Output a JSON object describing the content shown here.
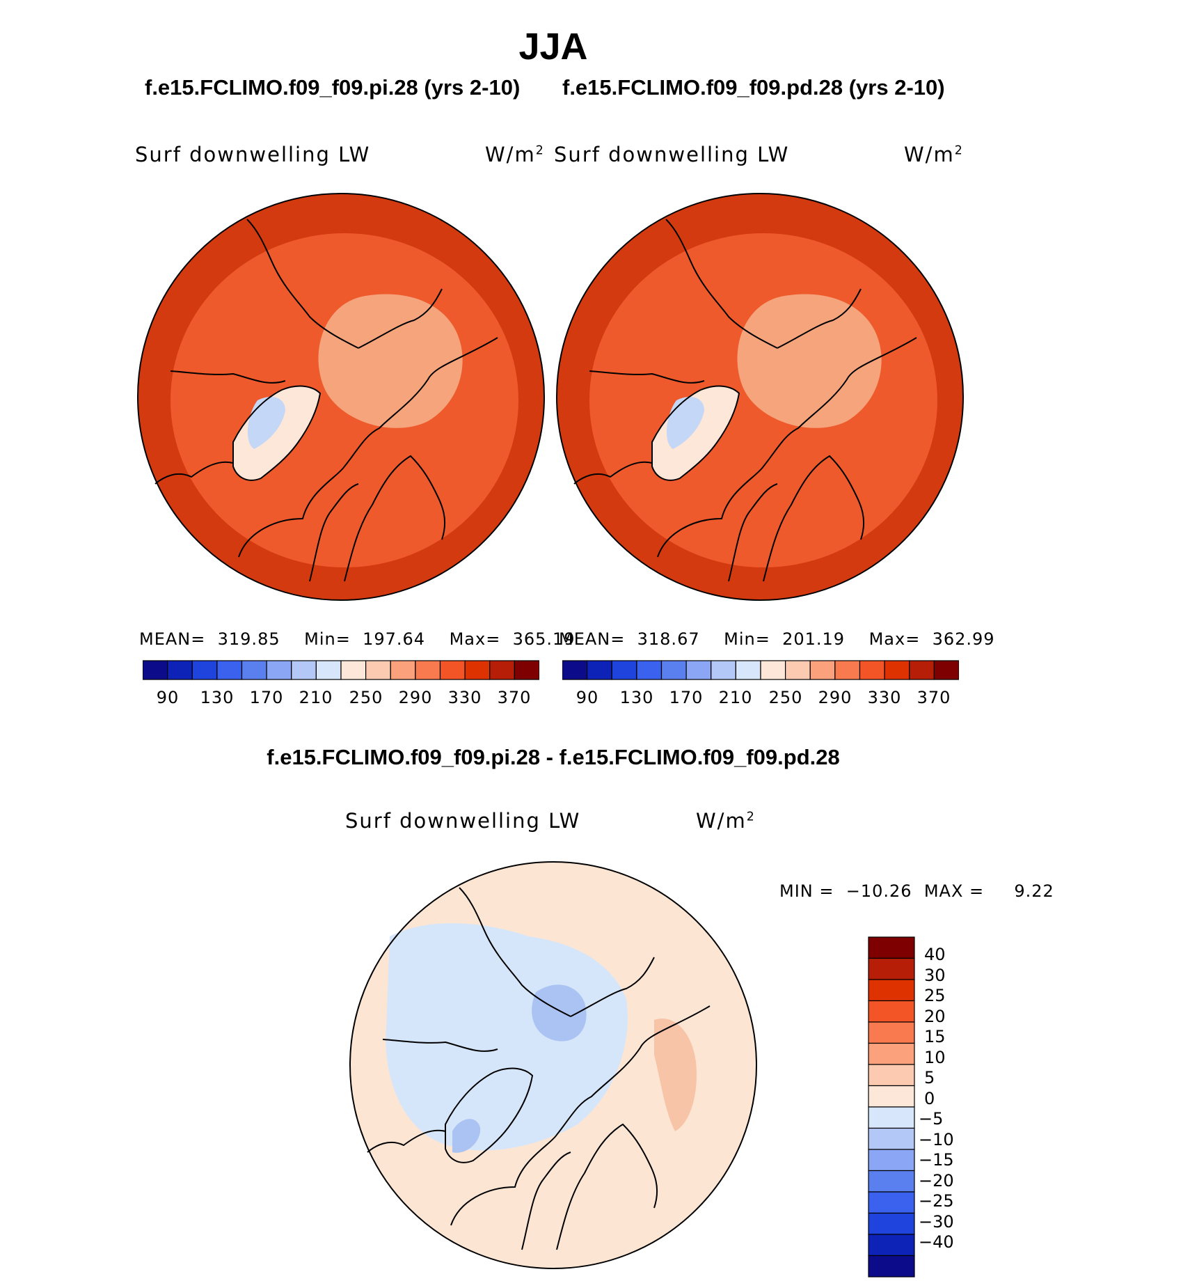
{
  "figure": {
    "title": "JJA",
    "diff_title": "f.e15.FCLIMO.f09_f09.pi.28 - f.e15.FCLIMO.f09_f09.pd.28"
  },
  "chart_data": [
    {
      "type": "heatmap",
      "projection": "north-polar-stereographic",
      "title": "f.e15.FCLIMO.f09_f09.pi.28 (yrs 2-10)",
      "variable": "Surf downwelling LW",
      "units": "W/m",
      "units_sup": "2",
      "mean_label": "MEAN=",
      "mean": "319.85",
      "min_label": "Min=",
      "min": "197.64",
      "max_label": "Max=",
      "max": "365.19",
      "colorbar_ticks": [
        "90",
        "130",
        "170",
        "210",
        "250",
        "290",
        "330",
        "370"
      ],
      "colorbar_levels": [
        90,
        110,
        130,
        150,
        170,
        190,
        210,
        230,
        250,
        270,
        290,
        310,
        330,
        350,
        370
      ]
    },
    {
      "type": "heatmap",
      "projection": "north-polar-stereographic",
      "title": "f.e15.FCLIMO.f09_f09.pd.28 (yrs 2-10)",
      "variable": "Surf downwelling LW",
      "units": "W/m",
      "units_sup": "2",
      "mean_label": "MEAN=",
      "mean": "318.67",
      "min_label": "Min=",
      "min": "201.19",
      "max_label": "Max=",
      "max": "362.99",
      "colorbar_ticks": [
        "90",
        "130",
        "170",
        "210",
        "250",
        "290",
        "330",
        "370"
      ],
      "colorbar_levels": [
        90,
        110,
        130,
        150,
        170,
        190,
        210,
        230,
        250,
        270,
        290,
        310,
        330,
        350,
        370
      ]
    },
    {
      "type": "heatmap",
      "projection": "north-polar-stereographic",
      "title": "f.e15.FCLIMO.f09_f09.pi.28 - f.e15.FCLIMO.f09_f09.pd.28",
      "variable": "Surf downwelling LW",
      "units": "W/m",
      "units_sup": "2",
      "min_label": "MIN =",
      "min": "−10.26",
      "max_label": "MAX =",
      "max": "9.22",
      "colorbar_ticks": [
        "40",
        "30",
        "25",
        "20",
        "15",
        "10",
        "5",
        "0",
        "−5",
        "−10",
        "−15",
        "−20",
        "−25",
        "−30",
        "−40"
      ],
      "colorbar_levels": [
        40,
        30,
        25,
        20,
        15,
        10,
        5,
        0,
        -5,
        -10,
        -15,
        -20,
        -25,
        -30,
        -40
      ]
    }
  ],
  "colors": {
    "seq": [
      "#0c0b8a",
      "#0d23b8",
      "#1f43dd",
      "#3a62ee",
      "#5a80f0",
      "#8aa6f4",
      "#b4c8f8",
      "#d8e6fb",
      "#fde7d8",
      "#fccab0",
      "#fba27d",
      "#f97a4e",
      "#f45526",
      "#de3300",
      "#b71e08",
      "#7e0000"
    ],
    "field_outer": "#d43a10",
    "field_mid": "#ee5a2c",
    "field_ocean": "#f2622f",
    "field_central": "#f6a47c",
    "field_greenland": "#fde7d8",
    "field_greenland_core": "#c5d7f6",
    "diff_pos": "#fde5d3",
    "diff_neg": "#d5e6fb",
    "diff_neg2": "#aac3f2",
    "diff_pos2": "#f8c4a8"
  }
}
